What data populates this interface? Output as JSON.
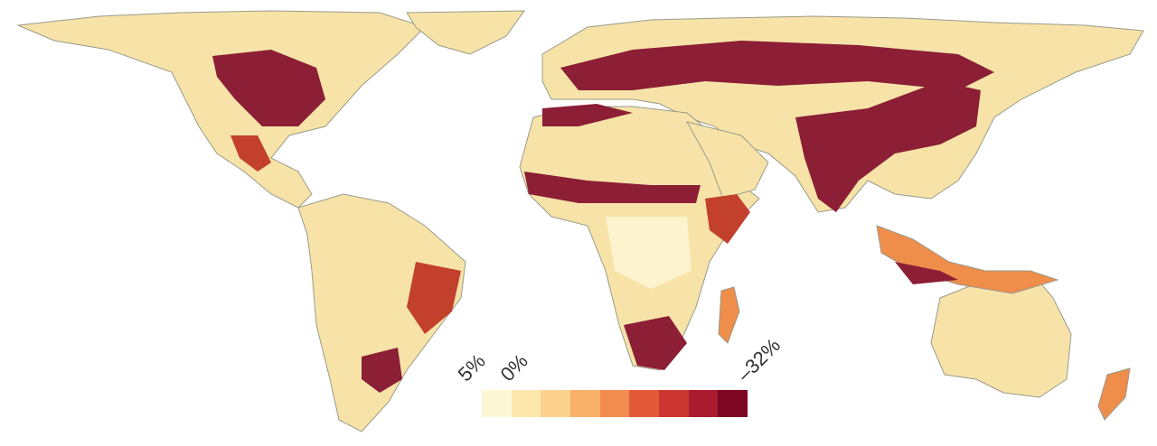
{
  "legend": {
    "labels": [
      "5%",
      "0%",
      "–32%"
    ],
    "swatch_colors": [
      "#fef7d6",
      "#fde7ad",
      "#fcd28e",
      "#f9b16a",
      "#f18b4f",
      "#e2593a",
      "#cc3630",
      "#aa1b2d",
      "#7d0623"
    ]
  },
  "map_colors": {
    "ocean": "#ffffff",
    "base_land": "#f7e3a8",
    "coast_outline": "#9a9a8a",
    "hotspot_dark": "#8c1e35",
    "hotspot_mid": "#c3402d",
    "hotspot_light": "#ef8d4b",
    "positive_light": "#fdf3cf"
  }
}
